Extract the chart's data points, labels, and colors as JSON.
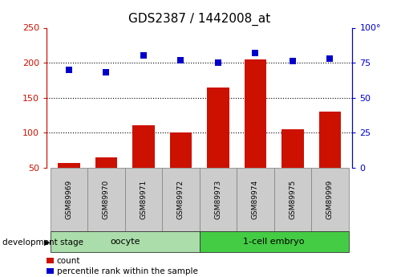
{
  "title": "GDS2387 / 1442008_at",
  "samples": [
    "GSM89969",
    "GSM89970",
    "GSM89971",
    "GSM89972",
    "GSM89973",
    "GSM89974",
    "GSM89975",
    "GSM89999"
  ],
  "counts": [
    57,
    65,
    110,
    100,
    165,
    205,
    105,
    130
  ],
  "percentiles": [
    70,
    68,
    80,
    77,
    75,
    82,
    76,
    78
  ],
  "groups": [
    {
      "label": "oocyte",
      "start": 0,
      "end": 4,
      "color": "#aaddaa"
    },
    {
      "label": "1-cell embryo",
      "start": 4,
      "end": 8,
      "color": "#44cc44"
    }
  ],
  "group_label": "development stage",
  "bar_color": "#cc1100",
  "dot_color": "#0000cc",
  "ylim_left": [
    50,
    250
  ],
  "ylim_right": [
    0,
    100
  ],
  "yticks_left": [
    50,
    100,
    150,
    200,
    250
  ],
  "yticks_right": [
    0,
    25,
    50,
    75,
    100
  ],
  "ytick_labels_right": [
    "0",
    "25",
    "50",
    "75",
    "100°"
  ],
  "title_fontsize": 11,
  "axis_color_left": "#cc1100",
  "axis_color_right": "#0000cc",
  "legend_count_label": "count",
  "legend_pct_label": "percentile rank within the sample",
  "background_color": "#ffffff",
  "tick_label_area_color": "#cccccc",
  "grid_lines": [
    100,
    150,
    200
  ],
  "bar_bottom": 50
}
